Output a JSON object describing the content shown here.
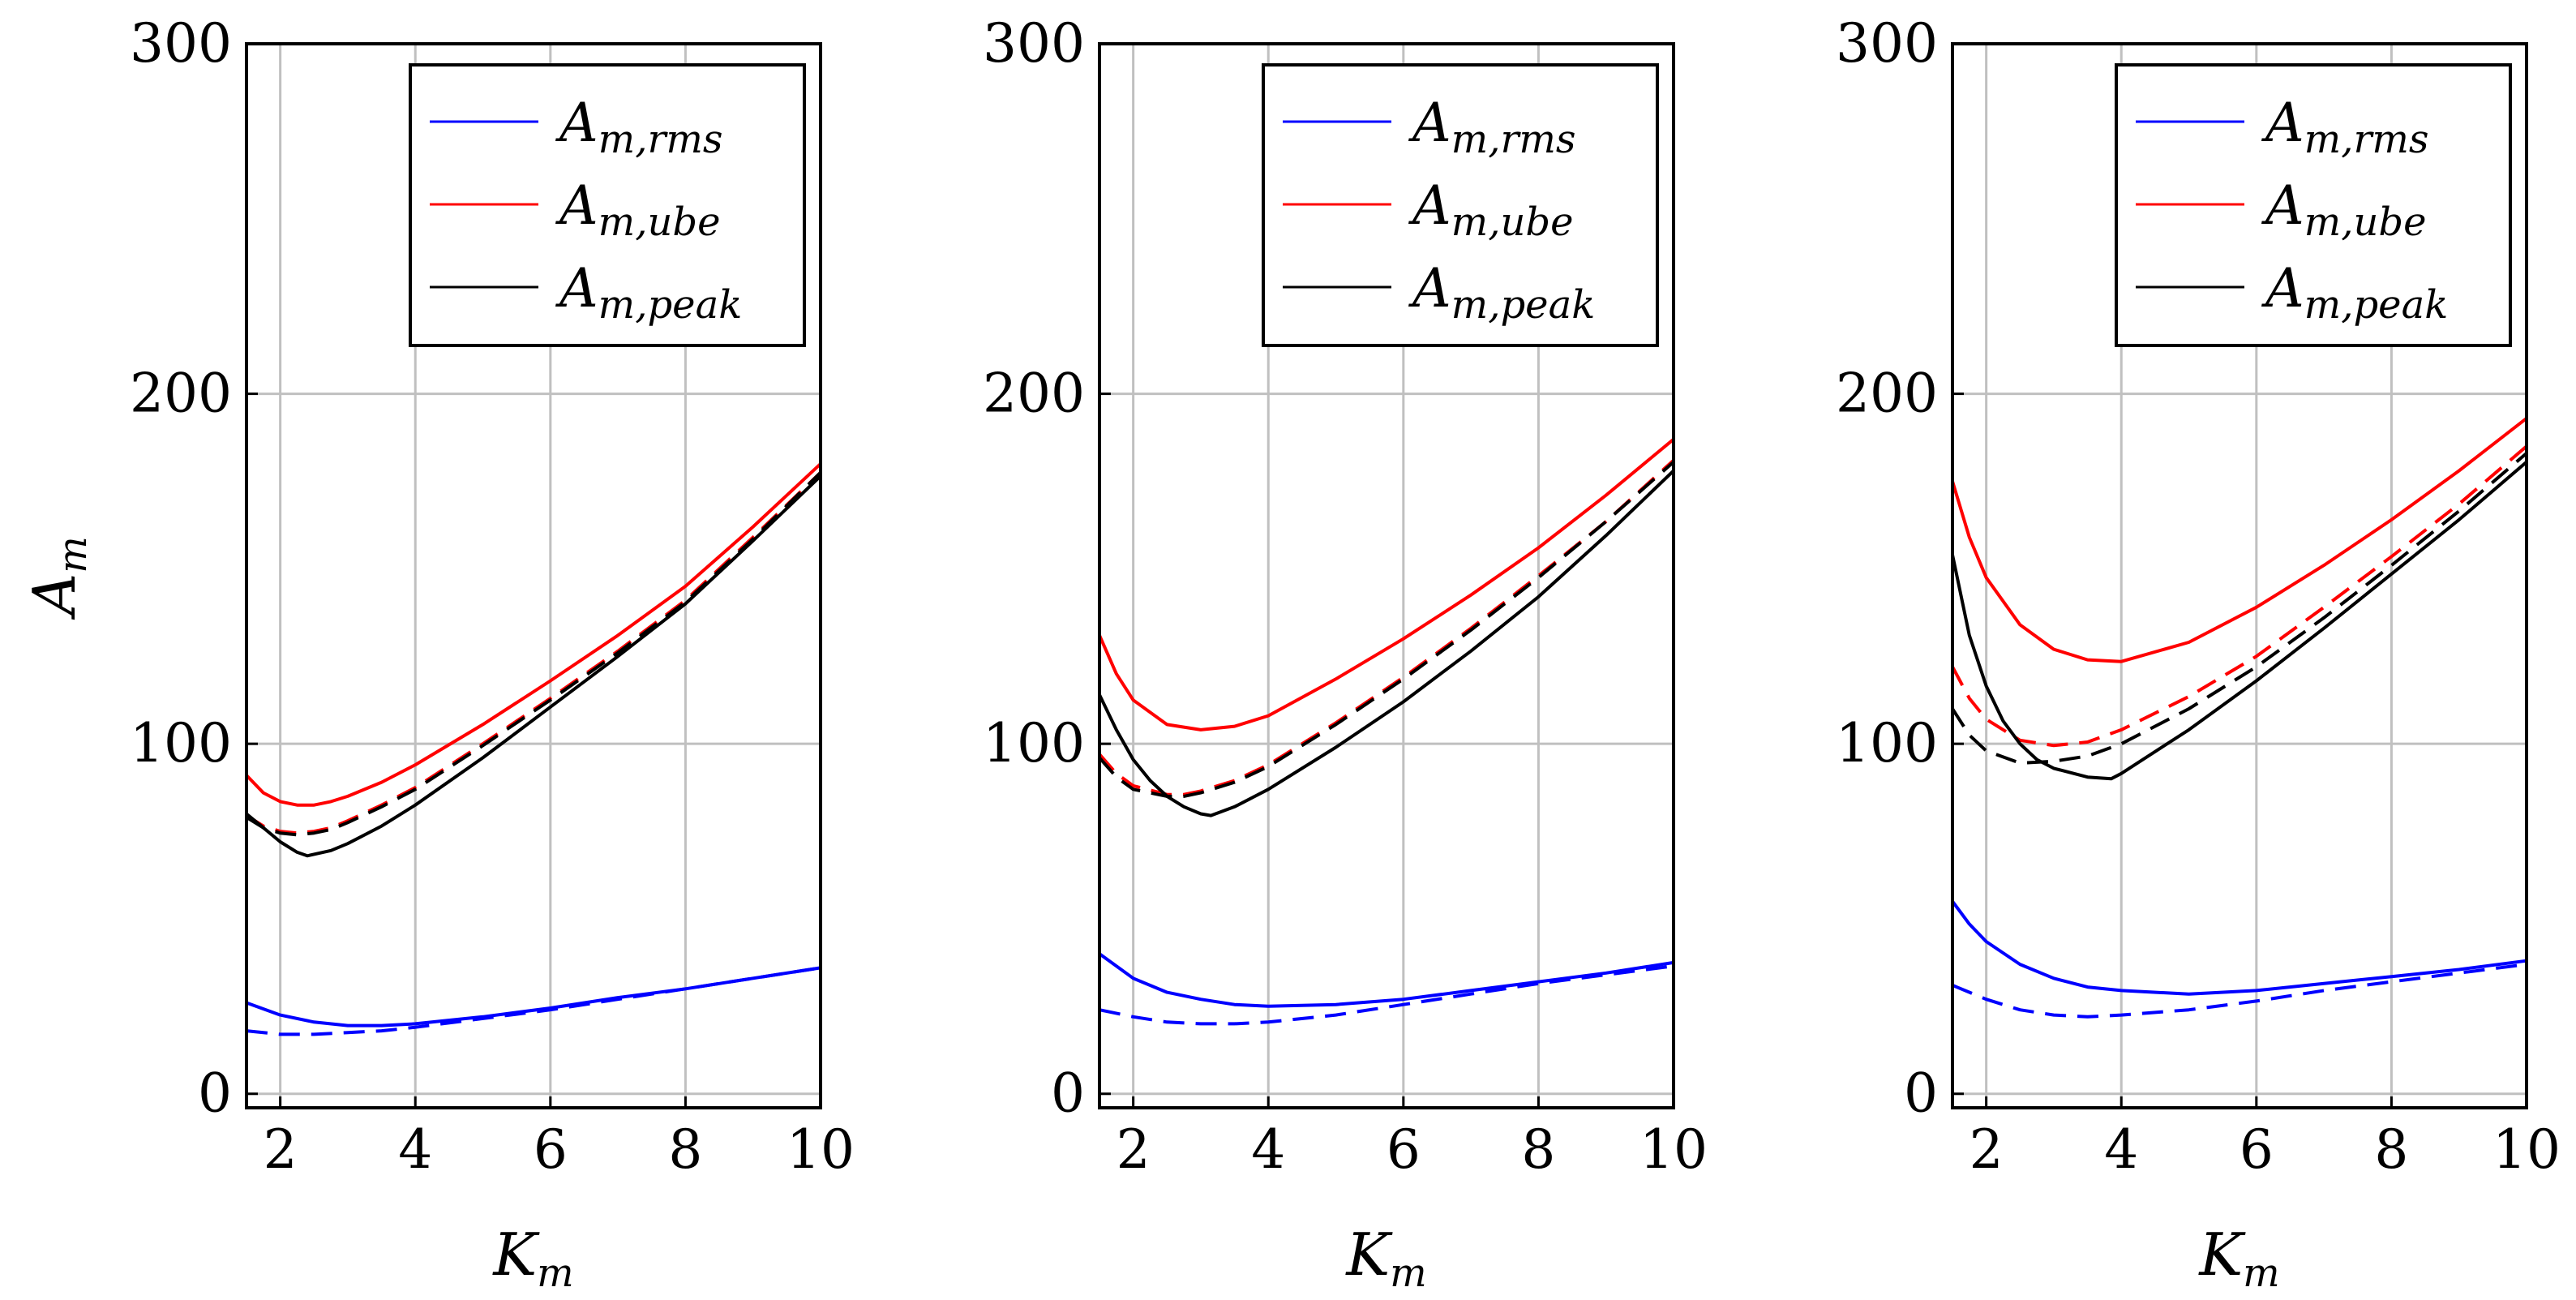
{
  "chart_data": [
    {
      "type": "line",
      "panel": "left",
      "xlabel": "K",
      "xlabel_sub": "m",
      "ylabel": "A",
      "ylabel_sub": "m",
      "xlim": [
        1.5,
        10
      ],
      "ylim": [
        -4,
        300
      ],
      "xticks": [
        2,
        4,
        6,
        8,
        10
      ],
      "yticks": [
        0,
        100,
        200,
        300
      ],
      "grid": true,
      "legend_position": "top-right",
      "legend": [
        {
          "main": "A",
          "sub": "m,rms",
          "color": "#0000ff"
        },
        {
          "main": "A",
          "sub": "m,ube",
          "color": "#ff0000"
        },
        {
          "main": "A",
          "sub": "m,peak",
          "color": "#000000"
        }
      ],
      "series": [
        {
          "name": "A_m,rms",
          "color": "#0000ff",
          "style": "solid",
          "x": [
            1.5,
            2,
            2.5,
            3,
            3.5,
            4,
            5,
            6,
            7,
            8,
            9,
            10
          ],
          "y": [
            26,
            22.5,
            20.5,
            19.5,
            19.5,
            20,
            22,
            24.5,
            27.5,
            30,
            33,
            36
          ]
        },
        {
          "name": "A_m,rms dashed",
          "color": "#0000ff",
          "style": "dashed",
          "x": [
            1.5,
            2,
            2.5,
            3,
            3.5,
            4,
            5,
            6,
            7,
            8,
            9,
            10
          ],
          "y": [
            18,
            17,
            17,
            17.5,
            18,
            19,
            21.5,
            24,
            27,
            30,
            33,
            36
          ]
        },
        {
          "name": "A_m,ube",
          "color": "#ff0000",
          "style": "solid",
          "x": [
            1.5,
            1.75,
            2,
            2.25,
            2.5,
            2.75,
            3,
            3.5,
            4,
            5,
            6,
            7,
            8,
            9,
            10
          ],
          "y": [
            91,
            86,
            83.5,
            82.5,
            82.5,
            83.5,
            85,
            89,
            94,
            105.5,
            118,
            131,
            145,
            162,
            180
          ]
        },
        {
          "name": "A_m,ube dashed",
          "color": "#ff0000",
          "style": "dashed",
          "x": [
            1.5,
            1.75,
            2,
            2.25,
            2.5,
            2.75,
            3,
            3.5,
            4,
            5,
            6,
            7,
            8,
            9,
            10
          ],
          "y": [
            79.5,
            76.5,
            75,
            74.5,
            75,
            76,
            78,
            82.5,
            87.5,
            100,
            113,
            126.5,
            141,
            159,
            177.5
          ]
        },
        {
          "name": "A_m,peak",
          "color": "#000000",
          "style": "solid",
          "x": [
            1.5,
            1.75,
            2,
            2.25,
            2.4,
            2.75,
            3,
            3.5,
            4,
            5,
            6,
            7,
            8,
            9,
            10
          ],
          "y": [
            80,
            76,
            72,
            69,
            68,
            69.5,
            71.5,
            76.5,
            82.5,
            96,
            110.5,
            125,
            140,
            158,
            176.5
          ]
        },
        {
          "name": "A_m,peak dashed",
          "color": "#000000",
          "style": "dashed",
          "x": [
            1.5,
            1.75,
            2,
            2.25,
            2.5,
            2.75,
            3,
            3.5,
            4,
            5,
            6,
            7,
            8,
            9,
            10
          ],
          "y": [
            79,
            76,
            74.5,
            74,
            74.5,
            75.5,
            77.5,
            82,
            87,
            99.5,
            112.5,
            126,
            140.5,
            158.5,
            177.5
          ]
        }
      ]
    },
    {
      "type": "line",
      "panel": "middle",
      "xlabel": "K",
      "xlabel_sub": "m",
      "ylabel": "",
      "ylabel_sub": "",
      "xlim": [
        1.5,
        10
      ],
      "ylim": [
        -4,
        300
      ],
      "xticks": [
        2,
        4,
        6,
        8,
        10
      ],
      "yticks": [
        0,
        100,
        200,
        300
      ],
      "grid": true,
      "legend_position": "top-right",
      "legend": [
        {
          "main": "A",
          "sub": "m,rms",
          "color": "#0000ff"
        },
        {
          "main": "A",
          "sub": "m,ube",
          "color": "#ff0000"
        },
        {
          "main": "A",
          "sub": "m,peak",
          "color": "#000000"
        }
      ],
      "series": [
        {
          "name": "A_m,rms",
          "color": "#0000ff",
          "style": "solid",
          "x": [
            1.5,
            2,
            2.5,
            3,
            3.5,
            4,
            5,
            6,
            7,
            8,
            9,
            10
          ],
          "y": [
            40,
            33,
            29,
            27,
            25.5,
            25,
            25.5,
            27,
            29.5,
            32,
            34.5,
            37.5
          ]
        },
        {
          "name": "A_m,rms dashed",
          "color": "#0000ff",
          "style": "dashed",
          "x": [
            1.5,
            2,
            2.5,
            3,
            3.5,
            4,
            5,
            6,
            7,
            8,
            9,
            10
          ],
          "y": [
            24,
            22,
            20.5,
            20,
            20,
            20.5,
            22.5,
            25.5,
            28.5,
            31.5,
            34,
            36.5
          ]
        },
        {
          "name": "A_m,ube",
          "color": "#ff0000",
          "style": "solid",
          "x": [
            1.5,
            1.75,
            2,
            2.5,
            3,
            3.5,
            4,
            5,
            6,
            7,
            8,
            9,
            10
          ],
          "y": [
            131,
            120,
            112.5,
            105.5,
            104,
            105,
            108,
            118.5,
            130,
            142.5,
            156,
            171,
            187
          ]
        },
        {
          "name": "A_m,ube dashed",
          "color": "#ff0000",
          "style": "dashed",
          "x": [
            1.5,
            1.75,
            2,
            2.5,
            2.75,
            3,
            3.5,
            4,
            5,
            6,
            7,
            8,
            9,
            10
          ],
          "y": [
            97,
            91.5,
            88,
            85.5,
            85.5,
            86.5,
            89.5,
            94,
            106,
            119,
            133,
            148,
            163.5,
            181
          ]
        },
        {
          "name": "A_m,peak",
          "color": "#000000",
          "style": "solid",
          "x": [
            1.5,
            1.75,
            2,
            2.25,
            2.5,
            2.75,
            3,
            3.15,
            3.5,
            4,
            5,
            6,
            7,
            8,
            9,
            10
          ],
          "y": [
            114,
            104,
            95.5,
            89.5,
            85,
            82,
            80,
            79.5,
            82,
            87,
            99,
            112,
            126.5,
            142,
            159.5,
            178
          ]
        },
        {
          "name": "A_m,peak dashed",
          "color": "#000000",
          "style": "dashed",
          "x": [
            1.5,
            1.75,
            2,
            2.5,
            2.75,
            3,
            3.5,
            4,
            5,
            6,
            7,
            8,
            9,
            10
          ],
          "y": [
            96,
            90.5,
            87,
            85,
            85,
            86,
            89,
            93.5,
            105.5,
            118.5,
            132.5,
            147.5,
            163.5,
            180.5
          ]
        }
      ]
    },
    {
      "type": "line",
      "panel": "right",
      "xlabel": "K",
      "xlabel_sub": "m",
      "ylabel": "",
      "ylabel_sub": "",
      "xlim": [
        1.5,
        10
      ],
      "ylim": [
        -4,
        300
      ],
      "xticks": [
        2,
        4,
        6,
        8,
        10
      ],
      "yticks": [
        0,
        100,
        200,
        300
      ],
      "grid": true,
      "legend_position": "top-right",
      "legend": [
        {
          "main": "A",
          "sub": "m,rms",
          "color": "#0000ff"
        },
        {
          "main": "A",
          "sub": "m,ube",
          "color": "#ff0000"
        },
        {
          "main": "A",
          "sub": "m,peak",
          "color": "#000000"
        }
      ],
      "series": [
        {
          "name": "A_m,rms",
          "color": "#0000ff",
          "style": "solid",
          "x": [
            1.5,
            1.75,
            2,
            2.5,
            3,
            3.5,
            4,
            5,
            6,
            7,
            8,
            9,
            10
          ],
          "y": [
            55,
            48.5,
            43.5,
            37,
            33,
            30.5,
            29.5,
            28.5,
            29.5,
            31.5,
            33.5,
            35.5,
            38
          ]
        },
        {
          "name": "A_m,rms dashed",
          "color": "#0000ff",
          "style": "dashed",
          "x": [
            1.5,
            2,
            2.5,
            3,
            3.5,
            4,
            5,
            6,
            7,
            8,
            9,
            10
          ],
          "y": [
            31,
            27,
            24,
            22.5,
            22,
            22.5,
            24,
            26.5,
            29.5,
            32,
            34.5,
            37
          ]
        },
        {
          "name": "A_m,ube",
          "color": "#ff0000",
          "style": "solid",
          "x": [
            1.5,
            1.75,
            2,
            2.5,
            3,
            3.5,
            4,
            5,
            6,
            7,
            8,
            9,
            10
          ],
          "y": [
            175,
            159,
            147.5,
            134,
            127,
            124,
            123.5,
            129,
            139,
            151,
            164,
            178,
            193
          ]
        },
        {
          "name": "A_m,ube dashed",
          "color": "#ff0000",
          "style": "dashed",
          "x": [
            1.5,
            1.75,
            2,
            2.5,
            3,
            3.5,
            4,
            5,
            6,
            7,
            8,
            9,
            10
          ],
          "y": [
            122,
            113,
            107,
            101,
            99.5,
            100.5,
            104,
            113.5,
            125,
            139,
            153.5,
            168.5,
            185
          ]
        },
        {
          "name": "A_m,peak",
          "color": "#000000",
          "style": "solid",
          "x": [
            1.5,
            1.75,
            2,
            2.25,
            2.5,
            2.75,
            3,
            3.5,
            3.85,
            4,
            5,
            6,
            7,
            8,
            9,
            10
          ],
          "y": [
            154,
            131,
            116.5,
            106.5,
            100,
            95.5,
            93,
            90.5,
            90,
            91.5,
            104,
            118,
            133,
            148.5,
            164,
            180.5
          ]
        },
        {
          "name": "A_m,peak dashed",
          "color": "#000000",
          "style": "dashed",
          "x": [
            1.5,
            1.75,
            2,
            2.5,
            3,
            3.5,
            4,
            5,
            6,
            7,
            8,
            9,
            10
          ],
          "y": [
            110,
            102.5,
            98,
            94.5,
            95,
            96.5,
            100,
            110,
            122,
            136,
            151,
            166.5,
            183
          ]
        }
      ]
    }
  ]
}
